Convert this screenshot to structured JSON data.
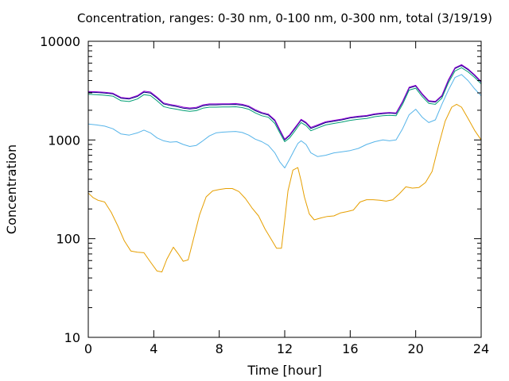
{
  "chart_data": {
    "type": "line",
    "title": "Concentration, ranges: 0-30 nm, 0-100 nm, 0-300 nm, total (3/19/19)",
    "xlabel": "Time [hour]",
    "ylabel": "Concentration",
    "xlim": [
      0,
      24
    ],
    "ylim": [
      10,
      10000
    ],
    "y_scale": "log",
    "grid": false,
    "legend": "none",
    "x_ticks": [
      0,
      4,
      8,
      12,
      16,
      20,
      24
    ],
    "x_tick_labels": [
      "0",
      "4",
      "8",
      "12",
      "16",
      "20",
      "24"
    ],
    "y_ticks": [
      10,
      100,
      1000,
      10000
    ],
    "y_tick_labels": [
      "10",
      "100",
      "1000",
      "10000"
    ],
    "series": [
      {
        "color": "#e69f00",
        "x": [
          0,
          0.3,
          0.6,
          1,
          1.4,
          1.8,
          2.2,
          2.6,
          3,
          3.4,
          3.8,
          4.2,
          4.5,
          4.8,
          5.2,
          5.5,
          5.8,
          6.1,
          6.4,
          6.8,
          7.2,
          7.6,
          8,
          8.4,
          8.8,
          9.2,
          9.6,
          10,
          10.4,
          10.8,
          11.2,
          11.5,
          11.8,
          12,
          12.2,
          12.5,
          12.8,
          13,
          13.2,
          13.5,
          13.8,
          14.2,
          14.6,
          15,
          15.4,
          15.8,
          16.2,
          16.6,
          17,
          17.4,
          17.8,
          18.2,
          18.6,
          19,
          19.4,
          19.8,
          20.2,
          20.6,
          21,
          21.4,
          21.8,
          22.2,
          22.5,
          22.8,
          23.2,
          23.6,
          24
        ],
        "values": [
          290,
          260,
          245,
          235,
          185,
          135,
          95,
          75,
          73,
          72,
          58,
          47,
          46,
          62,
          82,
          70,
          59,
          61,
          95,
          175,
          265,
          305,
          315,
          322,
          322,
          300,
          255,
          205,
          170,
          125,
          97,
          80,
          80,
          155,
          305,
          495,
          525,
          385,
          265,
          178,
          155,
          162,
          168,
          170,
          182,
          188,
          195,
          235,
          248,
          248,
          245,
          240,
          248,
          285,
          335,
          325,
          330,
          370,
          480,
          880,
          1550,
          2150,
          2300,
          2150,
          1650,
          1250,
          1000
        ]
      },
      {
        "color": "#56b4e9",
        "x": [
          0,
          0.5,
          1,
          1.5,
          2,
          2.5,
          3,
          3.4,
          3.8,
          4.2,
          4.6,
          5,
          5.4,
          5.8,
          6.2,
          6.6,
          7,
          7.4,
          7.8,
          8.2,
          8.6,
          9,
          9.4,
          9.8,
          10.2,
          10.6,
          11,
          11.4,
          11.7,
          12,
          12.3,
          12.6,
          12.8,
          13,
          13.3,
          13.6,
          14,
          14.5,
          15,
          15.5,
          16,
          16.5,
          17,
          17.5,
          18,
          18.4,
          18.8,
          19.2,
          19.6,
          20,
          20.4,
          20.8,
          21.2,
          21.6,
          22,
          22.4,
          22.8,
          23.2,
          23.6,
          24
        ],
        "values": [
          1450,
          1420,
          1380,
          1300,
          1150,
          1120,
          1180,
          1260,
          1180,
          1050,
          980,
          950,
          960,
          900,
          860,
          880,
          980,
          1100,
          1180,
          1200,
          1210,
          1220,
          1190,
          1120,
          1020,
          960,
          880,
          740,
          600,
          520,
          640,
          800,
          920,
          980,
          900,
          740,
          680,
          700,
          740,
          760,
          780,
          820,
          900,
          960,
          1000,
          980,
          1000,
          1300,
          1800,
          2050,
          1700,
          1500,
          1600,
          2300,
          3200,
          4300,
          4600,
          4000,
          3300,
          2800
        ]
      },
      {
        "color": "#009e73",
        "x": [
          0,
          0.5,
          1,
          1.5,
          2,
          2.5,
          3,
          3.4,
          3.8,
          4.2,
          4.6,
          5,
          5.4,
          5.8,
          6.2,
          6.6,
          7,
          7.4,
          7.8,
          8.2,
          8.6,
          9,
          9.4,
          9.8,
          10.2,
          10.6,
          11,
          11.4,
          11.7,
          12,
          12.3,
          12.6,
          12.8,
          13,
          13.3,
          13.6,
          14,
          14.5,
          15,
          15.5,
          16,
          16.5,
          17,
          17.5,
          18,
          18.4,
          18.8,
          19.2,
          19.6,
          20,
          20.4,
          20.8,
          21.2,
          21.6,
          22,
          22.4,
          22.8,
          23.2,
          23.6,
          24
        ],
        "values": [
          2900,
          2880,
          2840,
          2780,
          2500,
          2450,
          2600,
          2880,
          2820,
          2500,
          2180,
          2100,
          2050,
          1990,
          1950,
          1980,
          2100,
          2150,
          2150,
          2160,
          2160,
          2170,
          2130,
          2050,
          1880,
          1760,
          1700,
          1470,
          1180,
          960,
          1050,
          1220,
          1360,
          1500,
          1400,
          1240,
          1320,
          1420,
          1470,
          1520,
          1580,
          1620,
          1650,
          1720,
          1760,
          1780,
          1760,
          2300,
          3200,
          3350,
          2750,
          2350,
          2300,
          2650,
          3800,
          5000,
          5400,
          4900,
          4300,
          3700
        ]
      },
      {
        "color": "#000080",
        "x": [
          0,
          0.5,
          1,
          1.5,
          2,
          2.5,
          3,
          3.4,
          3.8,
          4.2,
          4.6,
          5,
          5.4,
          5.8,
          6.2,
          6.6,
          7,
          7.4,
          7.8,
          8.2,
          8.6,
          9,
          9.4,
          9.8,
          10.2,
          10.6,
          11,
          11.4,
          11.7,
          12,
          12.3,
          12.6,
          12.8,
          13,
          13.3,
          13.6,
          14,
          14.5,
          15,
          15.5,
          16,
          16.5,
          17,
          17.5,
          18,
          18.4,
          18.8,
          19.2,
          19.6,
          20,
          20.4,
          20.8,
          21.2,
          21.6,
          22,
          22.4,
          22.8,
          23.2,
          23.6,
          24
        ],
        "values": [
          3050,
          3030,
          2990,
          2930,
          2650,
          2600,
          2760,
          3050,
          2990,
          2660,
          2320,
          2240,
          2180,
          2100,
          2060,
          2090,
          2220,
          2270,
          2270,
          2280,
          2280,
          2290,
          2250,
          2160,
          1980,
          1860,
          1790,
          1560,
          1240,
          1000,
          1110,
          1290,
          1430,
          1590,
          1480,
          1310,
          1390,
          1500,
          1550,
          1600,
          1670,
          1710,
          1740,
          1810,
          1850,
          1870,
          1850,
          2420,
          3360,
          3520,
          2890,
          2460,
          2420,
          2780,
          4000,
          5300,
          5700,
          5150,
          4500,
          3850
        ]
      },
      {
        "color": "#9400d3",
        "x": [
          0,
          0.5,
          1,
          1.5,
          2,
          2.5,
          3,
          3.4,
          3.8,
          4.2,
          4.6,
          5,
          5.4,
          5.8,
          6.2,
          6.6,
          7,
          7.4,
          7.8,
          8.2,
          8.6,
          9,
          9.4,
          9.8,
          10.2,
          10.6,
          11,
          11.4,
          11.7,
          12,
          12.3,
          12.6,
          12.8,
          13,
          13.3,
          13.6,
          14,
          14.5,
          15,
          15.5,
          16,
          16.5,
          17,
          17.5,
          18,
          18.4,
          18.8,
          19.2,
          19.6,
          20,
          20.4,
          20.8,
          21.2,
          21.6,
          22,
          22.4,
          22.8,
          23.2,
          23.6,
          24
        ],
        "values": [
          3100,
          3080,
          3040,
          2980,
          2700,
          2650,
          2820,
          3120,
          3060,
          2720,
          2370,
          2290,
          2230,
          2150,
          2110,
          2140,
          2270,
          2320,
          2320,
          2330,
          2330,
          2340,
          2300,
          2210,
          2030,
          1900,
          1830,
          1600,
          1270,
          1020,
          1130,
          1320,
          1460,
          1620,
          1510,
          1340,
          1420,
          1530,
          1580,
          1630,
          1700,
          1740,
          1770,
          1840,
          1880,
          1900,
          1880,
          2460,
          3420,
          3580,
          2940,
          2500,
          2460,
          2830,
          4070,
          5400,
          5800,
          5250,
          4580,
          3920
        ]
      }
    ]
  }
}
